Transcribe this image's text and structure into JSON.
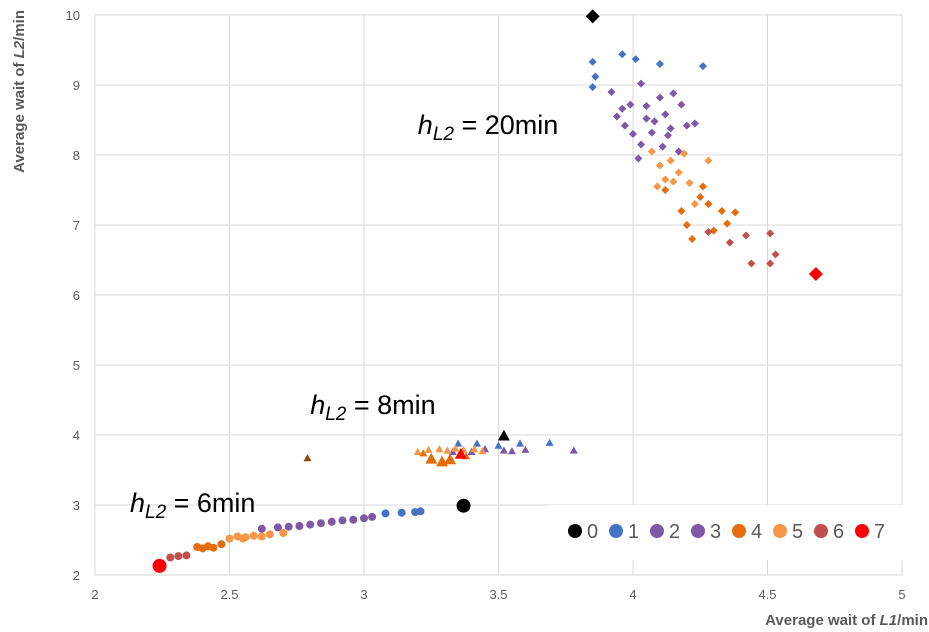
{
  "chart_data": {
    "type": "scatter",
    "xlabel": {
      "prefix": "Average wait of ",
      "italic": "L1",
      "suffix": "/min"
    },
    "ylabel": {
      "prefix": "Average wait of ",
      "italic": "L2",
      "suffix": "/min"
    },
    "xlim": [
      2,
      5
    ],
    "ylim": [
      2,
      10
    ],
    "x_ticks": [
      "2",
      "2.5",
      "3",
      "3.5",
      "4",
      "4.5",
      "5"
    ],
    "y_ticks": [
      "2",
      "3",
      "4",
      "5",
      "6",
      "7",
      "8",
      "9",
      "10"
    ],
    "grid": true,
    "legend_position": "bottom-right",
    "annotations": [
      {
        "h": "h",
        "sub": "L2",
        "text": " = 20min",
        "x": 3.2,
        "y": 8.3
      },
      {
        "h": "h",
        "sub": "L2",
        "text": " = 8min",
        "x": 2.8,
        "y": 4.3
      },
      {
        "h": "h",
        "sub": "L2",
        "text": " = 6min",
        "x": 2.13,
        "y": 2.9
      }
    ],
    "series": [
      {
        "name": "0",
        "color": "#000000",
        "points": [
          {
            "x": 3.85,
            "y": 9.98,
            "m": "diamond",
            "s": "L"
          },
          {
            "x": 3.52,
            "y": 3.99,
            "m": "triangle",
            "s": "M"
          },
          {
            "x": 3.37,
            "y": 2.99,
            "m": "circle",
            "s": "L"
          }
        ]
      },
      {
        "name": "1",
        "color": "#4472C4",
        "points": [
          {
            "x": 3.85,
            "y": 9.33,
            "m": "diamond",
            "s": "S"
          },
          {
            "x": 3.86,
            "y": 9.12,
            "m": "diamond",
            "s": "S"
          },
          {
            "x": 3.85,
            "y": 8.97,
            "m": "diamond",
            "s": "S"
          },
          {
            "x": 3.96,
            "y": 9.44,
            "m": "diamond",
            "s": "S"
          },
          {
            "x": 4.01,
            "y": 9.37,
            "m": "diamond",
            "s": "S"
          },
          {
            "x": 4.1,
            "y": 9.3,
            "m": "diamond",
            "s": "S"
          },
          {
            "x": 4.26,
            "y": 9.27,
            "m": "diamond",
            "s": "S"
          },
          {
            "x": 3.35,
            "y": 3.88,
            "m": "triangle",
            "s": "S"
          },
          {
            "x": 3.42,
            "y": 3.88,
            "m": "triangle",
            "s": "S"
          },
          {
            "x": 3.5,
            "y": 3.85,
            "m": "triangle",
            "s": "S"
          },
          {
            "x": 3.58,
            "y": 3.88,
            "m": "triangle",
            "s": "S"
          },
          {
            "x": 3.69,
            "y": 3.89,
            "m": "triangle",
            "s": "S"
          },
          {
            "x": 3.08,
            "y": 2.88,
            "m": "circle",
            "s": "S"
          },
          {
            "x": 3.14,
            "y": 2.89,
            "m": "circle",
            "s": "S"
          },
          {
            "x": 3.19,
            "y": 2.9,
            "m": "circle",
            "s": "S"
          },
          {
            "x": 3.21,
            "y": 2.91,
            "m": "circle",
            "s": "S"
          }
        ]
      },
      {
        "name": "2",
        "color": "#7E57A6",
        "points": [
          {
            "x": 3.92,
            "y": 8.9,
            "m": "diamond",
            "s": "S"
          },
          {
            "x": 3.96,
            "y": 8.66,
            "m": "diamond",
            "s": "S"
          },
          {
            "x": 3.97,
            "y": 8.42,
            "m": "diamond",
            "s": "S"
          },
          {
            "x": 4.03,
            "y": 9.02,
            "m": "diamond",
            "s": "S"
          },
          {
            "x": 4.05,
            "y": 8.52,
            "m": "diamond",
            "s": "S"
          },
          {
            "x": 4.07,
            "y": 8.32,
            "m": "diamond",
            "s": "S"
          },
          {
            "x": 4.1,
            "y": 8.82,
            "m": "diamond",
            "s": "S"
          },
          {
            "x": 4.12,
            "y": 8.58,
            "m": "diamond",
            "s": "S"
          },
          {
            "x": 4.14,
            "y": 8.38,
            "m": "diamond",
            "s": "S"
          },
          {
            "x": 4.15,
            "y": 8.88,
            "m": "diamond",
            "s": "S"
          },
          {
            "x": 4.18,
            "y": 8.72,
            "m": "diamond",
            "s": "S"
          },
          {
            "x": 4.03,
            "y": 8.15,
            "m": "diamond",
            "s": "S"
          },
          {
            "x": 4.11,
            "y": 8.12,
            "m": "diamond",
            "s": "S"
          },
          {
            "x": 4.2,
            "y": 8.42,
            "m": "diamond",
            "s": "S"
          },
          {
            "x": 4.0,
            "y": 8.3,
            "m": "diamond",
            "s": "S"
          },
          {
            "x": 3.78,
            "y": 3.78,
            "m": "triangle",
            "s": "S"
          },
          {
            "x": 3.4,
            "y": 3.76,
            "m": "triangle",
            "s": "S"
          },
          {
            "x": 3.55,
            "y": 3.77,
            "m": "triangle",
            "s": "S"
          },
          {
            "x": 2.62,
            "y": 2.66,
            "m": "circle",
            "s": "S"
          },
          {
            "x": 2.68,
            "y": 2.68,
            "m": "circle",
            "s": "S"
          },
          {
            "x": 2.76,
            "y": 2.7,
            "m": "circle",
            "s": "S"
          },
          {
            "x": 2.84,
            "y": 2.74,
            "m": "circle",
            "s": "S"
          },
          {
            "x": 2.92,
            "y": 2.78,
            "m": "circle",
            "s": "S"
          }
        ]
      },
      {
        "name": "3",
        "color": "#7E57A6",
        "points": [
          {
            "x": 3.94,
            "y": 8.55,
            "m": "diamond",
            "s": "S"
          },
          {
            "x": 3.99,
            "y": 8.72,
            "m": "diamond",
            "s": "S"
          },
          {
            "x": 4.05,
            "y": 8.7,
            "m": "diamond",
            "s": "S"
          },
          {
            "x": 4.08,
            "y": 8.48,
            "m": "diamond",
            "s": "S"
          },
          {
            "x": 4.13,
            "y": 8.28,
            "m": "diamond",
            "s": "S"
          },
          {
            "x": 4.17,
            "y": 8.05,
            "m": "diamond",
            "s": "S"
          },
          {
            "x": 4.23,
            "y": 8.45,
            "m": "diamond",
            "s": "S"
          },
          {
            "x": 4.02,
            "y": 7.95,
            "m": "diamond",
            "s": "S"
          },
          {
            "x": 3.45,
            "y": 3.8,
            "m": "triangle",
            "s": "S"
          },
          {
            "x": 3.6,
            "y": 3.79,
            "m": "triangle",
            "s": "S"
          },
          {
            "x": 3.33,
            "y": 3.76,
            "m": "triangle",
            "s": "S"
          },
          {
            "x": 3.52,
            "y": 3.78,
            "m": "triangle",
            "s": "S"
          },
          {
            "x": 3.0,
            "y": 2.81,
            "m": "circle",
            "s": "S"
          },
          {
            "x": 2.96,
            "y": 2.79,
            "m": "circle",
            "s": "S"
          },
          {
            "x": 3.03,
            "y": 2.83,
            "m": "circle",
            "s": "S"
          },
          {
            "x": 2.88,
            "y": 2.76,
            "m": "circle",
            "s": "S"
          },
          {
            "x": 2.8,
            "y": 2.72,
            "m": "circle",
            "s": "S"
          },
          {
            "x": 2.72,
            "y": 2.69,
            "m": "circle",
            "s": "S"
          }
        ]
      },
      {
        "name": "4",
        "color": "#E46C0A",
        "points": [
          {
            "x": 4.12,
            "y": 7.5,
            "m": "diamond",
            "s": "S"
          },
          {
            "x": 4.18,
            "y": 7.2,
            "m": "diamond",
            "s": "S"
          },
          {
            "x": 4.2,
            "y": 7.0,
            "m": "diamond",
            "s": "S"
          },
          {
            "x": 4.25,
            "y": 7.4,
            "m": "diamond",
            "s": "S"
          },
          {
            "x": 4.28,
            "y": 7.3,
            "m": "diamond",
            "s": "S"
          },
          {
            "x": 4.33,
            "y": 7.2,
            "m": "diamond",
            "s": "S"
          },
          {
            "x": 4.35,
            "y": 7.02,
            "m": "diamond",
            "s": "S"
          },
          {
            "x": 4.22,
            "y": 6.8,
            "m": "diamond",
            "s": "S"
          },
          {
            "x": 4.3,
            "y": 6.92,
            "m": "diamond",
            "s": "S"
          },
          {
            "x": 4.38,
            "y": 7.18,
            "m": "diamond",
            "s": "S"
          },
          {
            "x": 4.26,
            "y": 7.55,
            "m": "diamond",
            "s": "S"
          },
          {
            "x": 3.25,
            "y": 3.66,
            "m": "triangle",
            "s": "M"
          },
          {
            "x": 3.29,
            "y": 3.62,
            "m": "triangle",
            "s": "M"
          },
          {
            "x": 3.32,
            "y": 3.65,
            "m": "triangle",
            "s": "M"
          },
          {
            "x": 3.22,
            "y": 3.74,
            "m": "triangle",
            "s": "S"
          },
          {
            "x": 3.38,
            "y": 3.7,
            "m": "triangle",
            "s": "S"
          },
          {
            "x": 2.38,
            "y": 2.4,
            "m": "circle",
            "s": "S"
          },
          {
            "x": 2.42,
            "y": 2.41,
            "m": "circle",
            "s": "S"
          },
          {
            "x": 2.44,
            "y": 2.39,
            "m": "circle",
            "s": "S"
          },
          {
            "x": 2.47,
            "y": 2.44,
            "m": "circle",
            "s": "S"
          },
          {
            "x": 2.4,
            "y": 2.38,
            "m": "circle",
            "s": "S"
          }
        ]
      },
      {
        "name": "5",
        "color": "#F79646",
        "points": [
          {
            "x": 4.07,
            "y": 8.05,
            "m": "diamond",
            "s": "S"
          },
          {
            "x": 4.1,
            "y": 7.85,
            "m": "diamond",
            "s": "S"
          },
          {
            "x": 4.12,
            "y": 7.65,
            "m": "diamond",
            "s": "S"
          },
          {
            "x": 4.14,
            "y": 7.92,
            "m": "diamond",
            "s": "S"
          },
          {
            "x": 4.17,
            "y": 7.75,
            "m": "diamond",
            "s": "S"
          },
          {
            "x": 4.19,
            "y": 8.02,
            "m": "diamond",
            "s": "S"
          },
          {
            "x": 4.09,
            "y": 7.55,
            "m": "diamond",
            "s": "S"
          },
          {
            "x": 4.21,
            "y": 7.6,
            "m": "diamond",
            "s": "S"
          },
          {
            "x": 4.28,
            "y": 7.92,
            "m": "diamond",
            "s": "S"
          },
          {
            "x": 4.15,
            "y": 7.62,
            "m": "diamond",
            "s": "S"
          },
          {
            "x": 4.23,
            "y": 7.3,
            "m": "diamond",
            "s": "S"
          },
          {
            "x": 3.2,
            "y": 3.76,
            "m": "triangle",
            "s": "S"
          },
          {
            "x": 3.24,
            "y": 3.79,
            "m": "triangle",
            "s": "S"
          },
          {
            "x": 3.28,
            "y": 3.8,
            "m": "triangle",
            "s": "S"
          },
          {
            "x": 3.31,
            "y": 3.78,
            "m": "triangle",
            "s": "S"
          },
          {
            "x": 3.34,
            "y": 3.81,
            "m": "triangle",
            "s": "S"
          },
          {
            "x": 3.37,
            "y": 3.79,
            "m": "triangle",
            "s": "S"
          },
          {
            "x": 3.41,
            "y": 3.8,
            "m": "triangle",
            "s": "S"
          },
          {
            "x": 3.44,
            "y": 3.77,
            "m": "triangle",
            "s": "S"
          },
          {
            "x": 2.5,
            "y": 2.52,
            "m": "circle",
            "s": "S"
          },
          {
            "x": 2.53,
            "y": 2.55,
            "m": "circle",
            "s": "S"
          },
          {
            "x": 2.56,
            "y": 2.54,
            "m": "circle",
            "s": "S"
          },
          {
            "x": 2.59,
            "y": 2.56,
            "m": "circle",
            "s": "S"
          },
          {
            "x": 2.62,
            "y": 2.55,
            "m": "circle",
            "s": "S"
          },
          {
            "x": 2.65,
            "y": 2.58,
            "m": "circle",
            "s": "S"
          },
          {
            "x": 2.7,
            "y": 2.6,
            "m": "circle",
            "s": "S"
          },
          {
            "x": 2.55,
            "y": 2.52,
            "m": "circle",
            "s": "S"
          }
        ]
      },
      {
        "name": "6",
        "color": "#C0504D",
        "points": [
          {
            "x": 4.28,
            "y": 6.9,
            "m": "diamond",
            "s": "S"
          },
          {
            "x": 4.36,
            "y": 6.75,
            "m": "diamond",
            "s": "S"
          },
          {
            "x": 4.42,
            "y": 6.85,
            "m": "diamond",
            "s": "S"
          },
          {
            "x": 4.44,
            "y": 6.45,
            "m": "diamond",
            "s": "S"
          },
          {
            "x": 4.51,
            "y": 6.88,
            "m": "diamond",
            "s": "S"
          },
          {
            "x": 4.51,
            "y": 6.45,
            "m": "diamond",
            "s": "S"
          },
          {
            "x": 4.53,
            "y": 6.58,
            "m": "diamond",
            "s": "S"
          },
          {
            "x": 2.79,
            "y": 3.67,
            "m": "triangle",
            "s": "S",
            "c": "#8B4513"
          },
          {
            "x": 2.28,
            "y": 2.25,
            "m": "circle",
            "s": "S"
          },
          {
            "x": 2.31,
            "y": 2.27,
            "m": "circle",
            "s": "S"
          },
          {
            "x": 2.34,
            "y": 2.28,
            "m": "circle",
            "s": "S"
          }
        ]
      },
      {
        "name": "7",
        "color": "#FF0000",
        "points": [
          {
            "x": 4.68,
            "y": 6.3,
            "m": "diamond",
            "s": "L"
          },
          {
            "x": 3.36,
            "y": 3.73,
            "m": "triangle",
            "s": "M"
          },
          {
            "x": 2.24,
            "y": 2.13,
            "m": "circle",
            "s": "L"
          }
        ]
      }
    ]
  }
}
